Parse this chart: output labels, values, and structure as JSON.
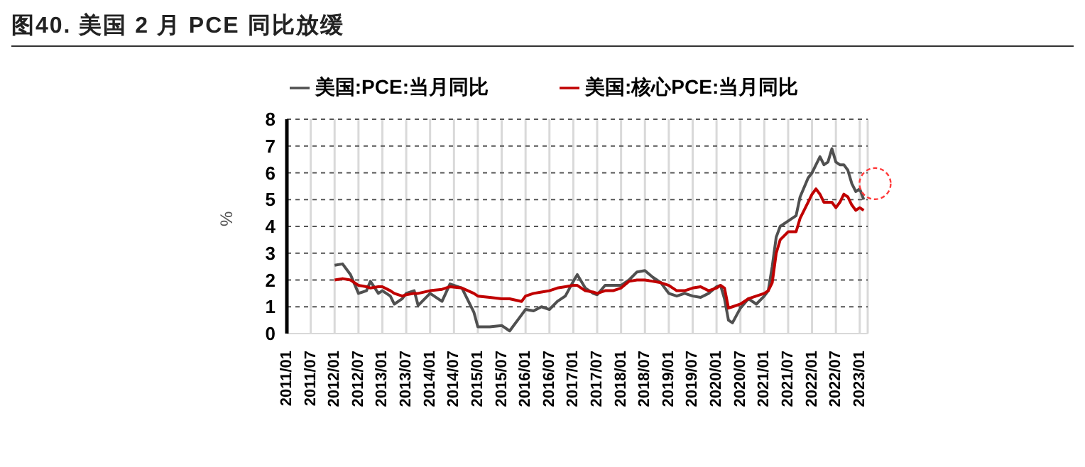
{
  "chart_data": {
    "type": "line",
    "title": "图40. 美国 2 月 PCE 同比放缓",
    "ylabel": "%",
    "legend": "top",
    "grid": true,
    "marker": "none",
    "line_style": "solid",
    "x": [
      "2012-01",
      "2012-03",
      "2012-05",
      "2012-07",
      "2012-09",
      "2012-10",
      "2012-12",
      "2013-01",
      "2013-03",
      "2013-04",
      "2013-06",
      "2013-07",
      "2013-09",
      "2013-10",
      "2014-01",
      "2014-04",
      "2014-06",
      "2014-09",
      "2014-12",
      "2015-01",
      "2015-04",
      "2015-07",
      "2015-09",
      "2015-12",
      "2016-01",
      "2016-03",
      "2016-05",
      "2016-07",
      "2016-09",
      "2016-11",
      "2017-01",
      "2017-02",
      "2017-04",
      "2017-06",
      "2017-07",
      "2017-09",
      "2017-11",
      "2018-01",
      "2018-03",
      "2018-05",
      "2018-07",
      "2018-09",
      "2018-11",
      "2019-01",
      "2019-03",
      "2019-05",
      "2019-07",
      "2019-09",
      "2019-11",
      "2020-01",
      "2020-02",
      "2020-03",
      "2020-04",
      "2020-05",
      "2020-07",
      "2020-09",
      "2020-11",
      "2021-01",
      "2021-02",
      "2021-03",
      "2021-04",
      "2021-05",
      "2021-07",
      "2021-09",
      "2021-10",
      "2021-12",
      "2022-01",
      "2022-02",
      "2022-03",
      "2022-04",
      "2022-05",
      "2022-06",
      "2022-07",
      "2022-08",
      "2022-09",
      "2022-10",
      "2022-11",
      "2022-12",
      "2023-01",
      "2023-02"
    ],
    "series": [
      {
        "name": "美国:PCE:当月同比",
        "color": "#505050",
        "values": [
          2.55,
          2.6,
          2.2,
          1.5,
          1.6,
          1.95,
          1.5,
          1.6,
          1.4,
          1.1,
          1.3,
          1.5,
          1.6,
          1.05,
          1.5,
          1.2,
          1.85,
          1.7,
          0.8,
          0.25,
          0.25,
          0.3,
          0.1,
          0.7,
          0.9,
          0.85,
          1.0,
          0.9,
          1.2,
          1.4,
          1.95,
          2.2,
          1.7,
          1.5,
          1.45,
          1.8,
          1.8,
          1.8,
          2.0,
          2.3,
          2.35,
          2.1,
          1.9,
          1.5,
          1.4,
          1.5,
          1.4,
          1.35,
          1.5,
          1.75,
          1.8,
          1.3,
          0.5,
          0.4,
          0.95,
          1.3,
          1.1,
          1.4,
          1.6,
          2.5,
          3.6,
          4.0,
          4.2,
          4.4,
          5.1,
          5.8,
          6.0,
          6.3,
          6.6,
          6.3,
          6.4,
          6.9,
          6.4,
          6.3,
          6.3,
          6.1,
          5.6,
          5.3,
          5.4,
          5.0
        ]
      },
      {
        "name": "美国:核心PCE:当月同比",
        "color": "#c00000",
        "values": [
          2.0,
          2.05,
          2.0,
          1.8,
          1.75,
          1.7,
          1.75,
          1.75,
          1.6,
          1.5,
          1.4,
          1.45,
          1.5,
          1.5,
          1.6,
          1.65,
          1.75,
          1.7,
          1.5,
          1.4,
          1.35,
          1.3,
          1.3,
          1.2,
          1.4,
          1.5,
          1.55,
          1.6,
          1.7,
          1.75,
          1.8,
          1.8,
          1.6,
          1.55,
          1.5,
          1.6,
          1.6,
          1.7,
          1.95,
          2.0,
          2.0,
          1.95,
          1.9,
          1.8,
          1.6,
          1.6,
          1.7,
          1.75,
          1.6,
          1.7,
          1.8,
          1.7,
          0.95,
          1.0,
          1.1,
          1.3,
          1.4,
          1.5,
          1.6,
          1.9,
          3.0,
          3.5,
          3.8,
          3.8,
          4.3,
          4.9,
          5.2,
          5.4,
          5.2,
          4.9,
          4.9,
          4.9,
          4.7,
          4.9,
          5.2,
          5.1,
          4.8,
          4.6,
          4.7,
          4.6
        ]
      }
    ],
    "xlim": [
      "2011-01",
      "2023-03"
    ],
    "xticks": [
      {
        "value": "2011-01",
        "label": "2011/01"
      },
      {
        "value": "2011-07",
        "label": "2011/07"
      },
      {
        "value": "2012-01",
        "label": "2012/01"
      },
      {
        "value": "2012-07",
        "label": "2012/07"
      },
      {
        "value": "2013-01",
        "label": "2013/01"
      },
      {
        "value": "2013-07",
        "label": "2013/07"
      },
      {
        "value": "2014-01",
        "label": "2014/01"
      },
      {
        "value": "2014-07",
        "label": "2014/07"
      },
      {
        "value": "2015-01",
        "label": "2015/01"
      },
      {
        "value": "2015-07",
        "label": "2015/07"
      },
      {
        "value": "2016-01",
        "label": "2016/01"
      },
      {
        "value": "2016-07",
        "label": "2016/07"
      },
      {
        "value": "2017-01",
        "label": "2017/01"
      },
      {
        "value": "2017-07",
        "label": "2017/07"
      },
      {
        "value": "2018-01",
        "label": "2018/01"
      },
      {
        "value": "2018-07",
        "label": "2018/07"
      },
      {
        "value": "2019-01",
        "label": "2019/01"
      },
      {
        "value": "2019-07",
        "label": "2019/07"
      },
      {
        "value": "2020-01",
        "label": "2020/01"
      },
      {
        "value": "2020-07",
        "label": "2020/07"
      },
      {
        "value": "2021-01",
        "label": "2021/01"
      },
      {
        "value": "2021-07",
        "label": "2021/07"
      },
      {
        "value": "2022-01",
        "label": "2022/01"
      },
      {
        "value": "2022-07",
        "label": "2022/07"
      },
      {
        "value": "2023-01",
        "label": "2023/01"
      }
    ],
    "ylim": [
      0,
      8
    ],
    "yticks": [
      0,
      1,
      2,
      3,
      4,
      5,
      6,
      7,
      8
    ]
  }
}
